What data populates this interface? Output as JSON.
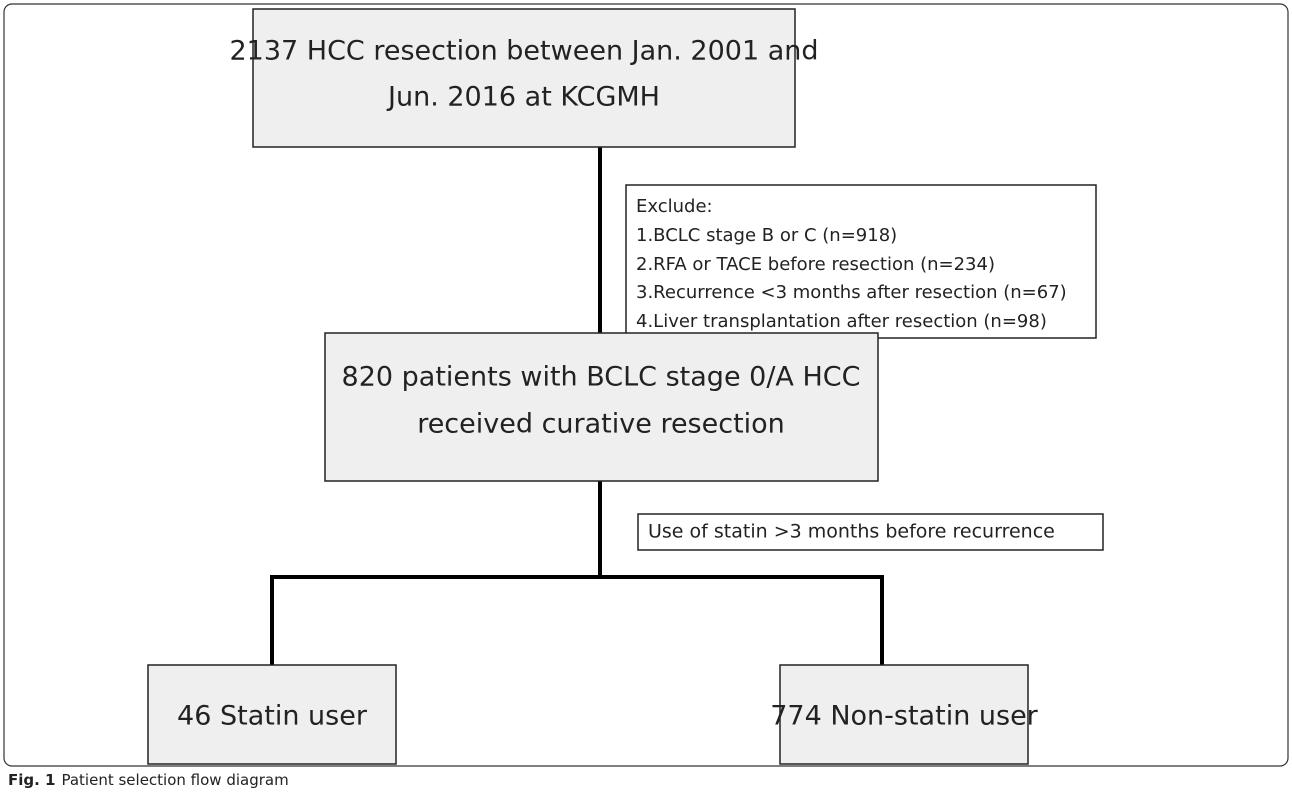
{
  "nodes": [
    {
      "lines": [
        "2137 HCC resection between Jan. 2001 and",
        "Jun. 2016 at KCGMH"
      ]
    },
    {
      "lines": [
        "Exclude:",
        "1.BCLC stage B or C (n=918)",
        "2.RFA or TACE before resection (n=234)",
        "3.Recurrence <3 months after resection (n=67)",
        "4.Liver transplantation after resection (n=98)"
      ]
    },
    {
      "lines": [
        "820 patients with BCLC stage 0/A HCC",
        "received curative resection"
      ]
    },
    {
      "lines": [
        "Use of statin >3 months before recurrence"
      ]
    },
    {
      "lines": [
        "46 Statin user"
      ]
    },
    {
      "lines": [
        "774 Non-statin user"
      ]
    }
  ],
  "caption": {
    "label": "Fig. 1",
    "text": "Patient selection flow diagram"
  }
}
